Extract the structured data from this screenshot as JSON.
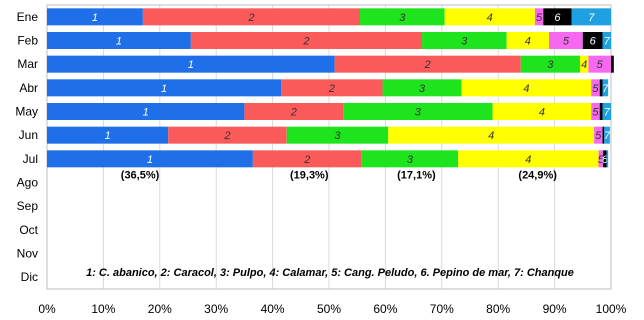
{
  "chart_data": {
    "type": "bar",
    "orientation": "horizontal",
    "stacked": true,
    "percent": true,
    "categories": [
      "Ene",
      "Feb",
      "Mar",
      "Abr",
      "May",
      "Jun",
      "Jul",
      "Ago",
      "Sep",
      "Oct",
      "Nov",
      "Dic"
    ],
    "series": [
      {
        "key": "1",
        "color": "#1F6FE8",
        "values": [
          17,
          25.5,
          51,
          41.5,
          35,
          21.5,
          36.5,
          null,
          null,
          null,
          null,
          null
        ]
      },
      {
        "key": "2",
        "color": "#FA5A5A",
        "values": [
          38.5,
          41,
          33,
          18,
          17.5,
          21,
          19.3,
          null,
          null,
          null,
          null,
          null
        ]
      },
      {
        "key": "3",
        "color": "#1EE41E",
        "values": [
          15,
          15,
          10.5,
          14,
          26.5,
          18,
          17.1,
          null,
          null,
          null,
          null,
          null
        ]
      },
      {
        "key": "4",
        "color": "#FFFF00",
        "values": [
          16,
          7.5,
          1.5,
          23,
          17.5,
          36.5,
          24.9,
          null,
          null,
          null,
          null,
          null
        ]
      },
      {
        "key": "5",
        "color": "#F768F0",
        "values": [
          1.5,
          6,
          4,
          1.5,
          1.5,
          1.5,
          0.8,
          null,
          null,
          null,
          null,
          null
        ]
      },
      {
        "key": "6",
        "color": "#000000",
        "values": [
          5,
          3.5,
          0.5,
          0.5,
          0.5,
          0.3,
          0.6,
          null,
          null,
          null,
          null,
          null
        ]
      },
      {
        "key": "7",
        "color": "#1FA0E0",
        "values": [
          7,
          1.5,
          0,
          1,
          1.5,
          1,
          0.3,
          null,
          null,
          null,
          null,
          null
        ]
      }
    ],
    "xlim": [
      0,
      100
    ],
    "xticks": [
      "0%",
      "10%",
      "20%",
      "30%",
      "40%",
      "50%",
      "60%",
      "70%",
      "80%",
      "90%",
      "100%"
    ],
    "annotations": [
      {
        "text": "(36,5%)",
        "x": 16.5
      },
      {
        "text": "(19,3%)",
        "x": 46.5
      },
      {
        "text": "(17,1%)",
        "x": 65.5
      },
      {
        "text": "(24,9%)",
        "x": 87
      }
    ],
    "legend_text": "1: C. abanico,  2: Caracol,  3: Pulpo,  4: Calamar,  5: Cang. Peludo,  6. Pepino de mar,  7: Chanque",
    "grid": true
  }
}
